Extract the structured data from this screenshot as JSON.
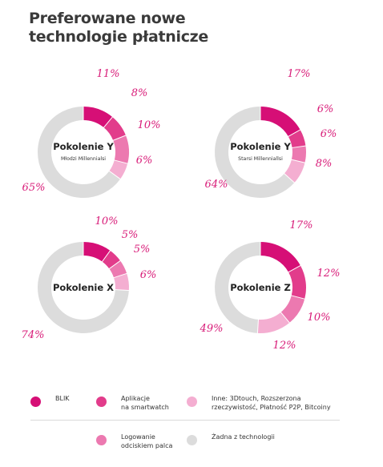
{
  "title_lines": [
    "Preferowane nowe",
    "technologie płatnicze"
  ],
  "colors": {
    "BLIK": "#d60f76",
    "Aplikacje na smartwatch": "#e23c8b",
    "Inne": "#f4aed1",
    "Logowanie odciskiem palca": "#ec79b0",
    "Żadna z technologii": "#dcdcdc",
    "label": "#d81b78"
  },
  "legend": [
    {
      "key": "BLIK",
      "label": "BLIK"
    },
    {
      "key": "Aplikacje na smartwatch",
      "label": "Aplikacje\nna smartwatch"
    },
    {
      "key": "Inne",
      "label": "Inne: 3Dtouch, Rozszerzona\nrzeczywistość, Płatność P2P, Bitcoiny"
    },
    {
      "key": "Logowanie odciskiem palca",
      "label": "Logowanie\nodciskiem palca"
    },
    {
      "key": "Żadna z technologii",
      "label": "Żadna z technologii"
    }
  ],
  "chart_data": [
    {
      "type": "pie",
      "title": "Pokolenie Y",
      "subtitle": "Młodzi Millennialsi",
      "slices": [
        {
          "key": "BLIK",
          "value": 11,
          "label": "11%"
        },
        {
          "key": "Aplikacje na smartwatch",
          "value": 8,
          "label": "8%"
        },
        {
          "key": "Logowanie odciskiem palca",
          "value": 10,
          "label": "10%"
        },
        {
          "key": "Inne",
          "value": 6,
          "label": "6%"
        },
        {
          "key": "Żadna z technologii",
          "value": 65,
          "label": "65%"
        }
      ]
    },
    {
      "type": "pie",
      "title": "Pokolenie Y",
      "subtitle": "Starsi Millenniallsi",
      "slices": [
        {
          "key": "BLIK",
          "value": 17,
          "label": "17%"
        },
        {
          "key": "Aplikacje na smartwatch",
          "value": 6,
          "label": "6%"
        },
        {
          "key": "Logowanie odciskiem palca",
          "value": 6,
          "label": "6%"
        },
        {
          "key": "Inne",
          "value": 8,
          "label": "8%"
        },
        {
          "key": "Żadna z technologii",
          "value": 64,
          "label": "64%"
        }
      ]
    },
    {
      "type": "pie",
      "title": "Pokolenie X",
      "subtitle": "",
      "slices": [
        {
          "key": "BLIK",
          "value": 10,
          "label": "10%"
        },
        {
          "key": "Aplikacje na smartwatch",
          "value": 5,
          "label": "5%"
        },
        {
          "key": "Logowanie odciskiem palca",
          "value": 5,
          "label": "5%"
        },
        {
          "key": "Inne",
          "value": 6,
          "label": "6%"
        },
        {
          "key": "Żadna z technologii",
          "value": 74,
          "label": "74%"
        }
      ]
    },
    {
      "type": "pie",
      "title": "Pokolenie Z",
      "subtitle": "",
      "slices": [
        {
          "key": "BLIK",
          "value": 17,
          "label": "17%"
        },
        {
          "key": "Aplikacje na smartwatch",
          "value": 12,
          "label": "12%"
        },
        {
          "key": "Logowanie odciskiem palca",
          "value": 10,
          "label": "10%"
        },
        {
          "key": "Inne",
          "value": 12,
          "label": "12%"
        },
        {
          "key": "Żadna z technologii",
          "value": 49,
          "label": "49%"
        }
      ]
    }
  ]
}
